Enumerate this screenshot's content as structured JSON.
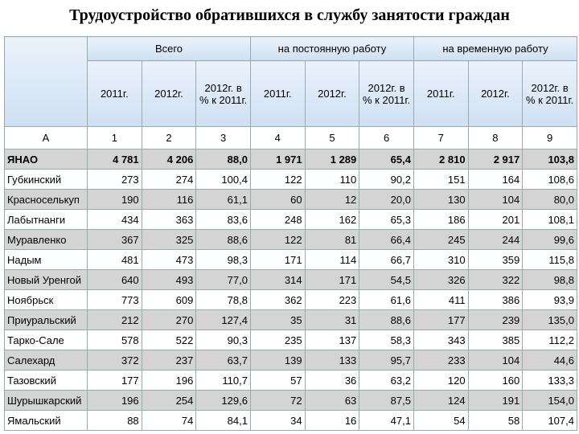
{
  "header": {
    "title": "Трудоустройство обратившихся в службу занятости граждан"
  },
  "table": {
    "groups": [
      {
        "title": "Всего",
        "columns": [
          "2011г.",
          "2012г.",
          "2012г. в % к 2011г."
        ]
      },
      {
        "title": "на постоянную работу",
        "columns": [
          "2011г.",
          "2012г.",
          "2012г. в % к 2011г."
        ]
      },
      {
        "title": "на временную работу",
        "columns": [
          "2011г.",
          "2012г.",
          "2012г. в % к 2011г."
        ]
      }
    ],
    "column_numbers": [
      "А",
      "1",
      "2",
      "3",
      "4",
      "5",
      "6",
      "7",
      "8",
      "9"
    ],
    "rows": [
      [
        "ЯНАО",
        "4 781",
        "4 206",
        "88,0",
        "1 971",
        "1 289",
        "65,4",
        "2 810",
        "2 917",
        "103,8"
      ],
      [
        "Губкинский",
        "273",
        "274",
        "100,4",
        "122",
        "110",
        "90,2",
        "151",
        "164",
        "108,6"
      ],
      [
        "Красноселькуп",
        "190",
        "116",
        "61,1",
        "60",
        "12",
        "20,0",
        "130",
        "104",
        "80,0"
      ],
      [
        "Лабытнанги",
        "434",
        "363",
        "83,6",
        "248",
        "162",
        "65,3",
        "186",
        "201",
        "108,1"
      ],
      [
        "Муравленко",
        "367",
        "325",
        "88,6",
        "122",
        "81",
        "66,4",
        "245",
        "244",
        "99,6"
      ],
      [
        "Надым",
        "481",
        "473",
        "98,3",
        "171",
        "114",
        "66,7",
        "310",
        "359",
        "115,8"
      ],
      [
        "Новый Уренгой",
        "640",
        "493",
        "77,0",
        "314",
        "171",
        "54,5",
        "326",
        "322",
        "98,8"
      ],
      [
        "Ноябрьск",
        "773",
        "609",
        "78,8",
        "362",
        "223",
        "61,6",
        "411",
        "386",
        "93,9"
      ],
      [
        "Приуральский",
        "212",
        "270",
        "127,4",
        "35",
        "31",
        "88,6",
        "177",
        "239",
        "135,0"
      ],
      [
        "Тарко-Сале",
        "578",
        "522",
        "90,3",
        "235",
        "137",
        "58,3",
        "343",
        "385",
        "112,2"
      ],
      [
        "Салехард",
        "372",
        "237",
        "63,7",
        "139",
        "133",
        "95,7",
        "233",
        "104",
        "44,6"
      ],
      [
        "Тазовский",
        "177",
        "196",
        "110,7",
        "57",
        "36",
        "63,2",
        "120",
        "160",
        "133,3"
      ],
      [
        "Шурышкарский",
        "196",
        "254",
        "129,6",
        "72",
        "63",
        "87,5",
        "124",
        "191",
        "154,0"
      ],
      [
        "Ямальский",
        "88",
        "74",
        "84,1",
        "34",
        "16",
        "47,1",
        "54",
        "58",
        "107,4"
      ]
    ]
  }
}
